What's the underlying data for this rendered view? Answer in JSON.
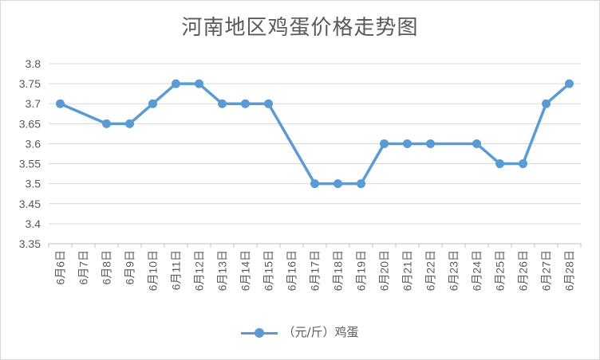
{
  "chart_data": {
    "type": "line",
    "title": "河南地区鸡蛋价格走势图",
    "categories": [
      "6月6日",
      "6月7日",
      "6月8日",
      "6月9日",
      "6月10日",
      "6月11日",
      "6月12日",
      "6月13日",
      "6月14日",
      "6月15日",
      "6月16日",
      "6月17日",
      "6月18日",
      "6月19日",
      "6月20日",
      "6月21日",
      "6月22日",
      "6月23日",
      "6月24日",
      "6月25日",
      "6月26日",
      "6月27日",
      "6月28日"
    ],
    "series": [
      {
        "name": "（元/斤）鸡蛋",
        "values": [
          3.7,
          null,
          3.65,
          3.65,
          3.7,
          3.75,
          3.75,
          3.7,
          3.7,
          3.7,
          null,
          3.5,
          3.5,
          3.5,
          3.6,
          3.6,
          3.6,
          null,
          3.6,
          3.55,
          3.55,
          3.7,
          3.75
        ]
      }
    ],
    "ylim": [
      3.35,
      3.8
    ],
    "yticks": [
      "3.35",
      "3.4",
      "3.45",
      "3.5",
      "3.55",
      "3.6",
      "3.65",
      "3.7",
      "3.75",
      "3.8"
    ],
    "grid": true,
    "legend_position": "bottom",
    "series_color": "#5b9bd5"
  }
}
